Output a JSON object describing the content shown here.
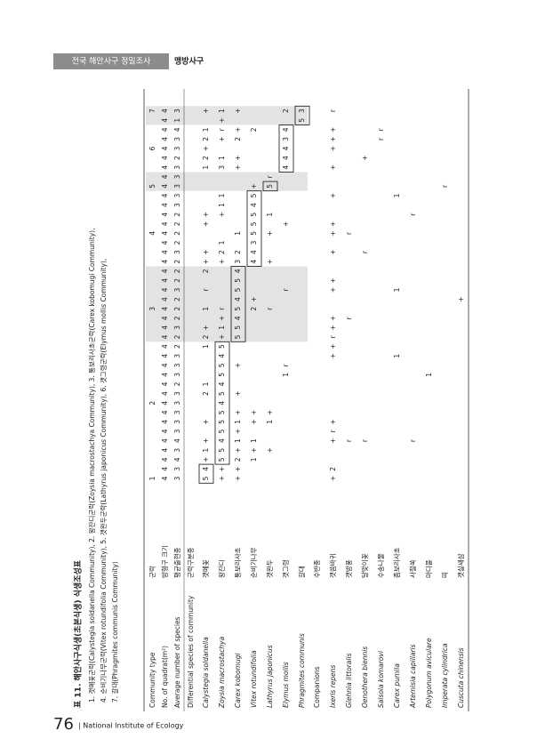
{
  "header": {
    "section": "전국 해안사구 정밀조사",
    "site": "맹방사구"
  },
  "footer": {
    "page": "76",
    "org": "| National Institute of Ecology"
  },
  "title": "표 11. 해안사구식생(초본식생) 식생조성표",
  "legend": [
    "1. 갯메꽃군락(Calystegia soldanella Community),   2. 왕잔디군락(Zoysia macrostachya Community),   3. 통보리사초군락(Carex kobomugi Community),",
    "4. 순비기나무군락(Vitex rotundifolia Community),   5. 갯완두군락(Lathyrus japonicus Community),   6. 갯그령군락(Elymus mollis Community),",
    "7. 갈대(Phragmites communis Community)"
  ],
  "table": {
    "head": [
      {
        "label": "Community type",
        "korean": "군락",
        "cells": [
          "1",
          null,
          null,
          null,
          null,
          null,
          null,
          null,
          "2",
          null,
          null,
          null,
          null,
          null,
          null,
          null,
          null,
          null,
          "3",
          null,
          null,
          null,
          null,
          null,
          null,
          null,
          "4",
          null,
          null,
          null,
          null,
          "5",
          null,
          null,
          null,
          "6",
          null,
          null,
          null,
          "7"
        ]
      },
      {
        "label": "No. of quadrat(m²)",
        "korean": "방형구 크기",
        "cells": [
          "4",
          "4",
          "4",
          "4",
          "4",
          "4",
          "4",
          "4",
          "4",
          "4",
          "4",
          "4",
          "4",
          "4",
          "4",
          "4",
          "4",
          "4",
          "4",
          "4",
          "4",
          "4",
          "4",
          "4",
          "4",
          "4",
          "4",
          "4",
          "4",
          "4",
          "4",
          "4",
          "4",
          "4",
          "4",
          "4",
          "4",
          "4",
          "4",
          "4"
        ]
      },
      {
        "label": "Average number of species",
        "korean": "평균출현종",
        "cells": [
          "3",
          "3",
          "4",
          "3",
          "4",
          "3",
          "3",
          "3",
          "3",
          "3",
          "2",
          "3",
          "3",
          "3",
          "2",
          "2",
          "3",
          "2",
          "2",
          "2",
          "3",
          "2",
          "2",
          "2",
          "3",
          "2",
          "2",
          "2",
          "2",
          "3",
          "3",
          "3",
          "3",
          "3",
          "2",
          "3",
          "3",
          "4",
          "1",
          "3"
        ]
      }
    ],
    "differential_header": {
      "label": "Differential species of community",
      "korean": "군락구분종"
    },
    "differential": [
      {
        "name": "Calystegia soldanella",
        "korean": "갯메꽃",
        "cells": [
          "5",
          "4",
          "+",
          "1",
          "+",
          null,
          "+",
          null,
          null,
          "2",
          "1",
          null,
          null,
          null,
          "1",
          "2",
          "+",
          null,
          "1",
          null,
          "r",
          null,
          "2",
          "+",
          "+",
          null,
          null,
          "+",
          "+",
          null,
          null,
          null,
          null,
          "1",
          "2",
          "+",
          "2",
          "1",
          null,
          "+"
        ]
      },
      {
        "name": "Zoysia macrostachya",
        "korean": "왕잔디",
        "cells": [
          "+",
          "+",
          "5",
          "5",
          "4",
          "5",
          "5",
          "5",
          "4",
          "5",
          "4",
          "5",
          "5",
          "4",
          "5",
          "+",
          "1",
          "+",
          "r",
          null,
          null,
          null,
          null,
          "+",
          "2",
          "1",
          null,
          null,
          "+",
          "1",
          "1",
          null,
          null,
          "3",
          "1",
          null,
          "+",
          "r",
          "+",
          "1"
        ]
      },
      {
        "name": "Carex kobomugi",
        "korean": "통보리사초",
        "cells": [
          "+",
          "+",
          "2",
          "+",
          "1",
          "+",
          "1",
          "+",
          null,
          "+",
          null,
          null,
          "+",
          null,
          null,
          "5",
          "5",
          "4",
          "5",
          "4",
          "5",
          "5",
          "4",
          "3",
          "2",
          null,
          "1",
          null,
          null,
          null,
          null,
          null,
          null,
          "+",
          "+",
          null,
          "2",
          "+",
          null,
          "+"
        ]
      },
      {
        "name": "Vitex rotundifolia",
        "korean": "순비기나무",
        "cells": [
          null,
          null,
          "1",
          "+",
          "1",
          null,
          "+",
          "+",
          null,
          null,
          null,
          null,
          null,
          null,
          null,
          null,
          null,
          null,
          "2",
          "+",
          null,
          null,
          null,
          "4",
          "4",
          "3",
          "5",
          "5",
          "5",
          "4",
          "5",
          "+",
          null,
          null,
          null,
          null,
          null,
          "2",
          null,
          null
        ]
      },
      {
        "name": "Lathyrus japonicus",
        "korean": "갯완두",
        "cells": [
          null,
          null,
          null,
          "+",
          null,
          null,
          "1",
          "+",
          null,
          null,
          null,
          null,
          null,
          null,
          null,
          null,
          null,
          null,
          "r",
          null,
          null,
          null,
          null,
          "+",
          null,
          null,
          "+",
          null,
          "1",
          null,
          null,
          "5",
          "r",
          null,
          null,
          null,
          null,
          null,
          null,
          null
        ]
      },
      {
        "name": "Elymus mollis",
        "korean": "갯그령",
        "cells": [
          null,
          null,
          null,
          null,
          null,
          null,
          null,
          null,
          null,
          null,
          null,
          "1",
          "r",
          null,
          null,
          null,
          null,
          null,
          null,
          null,
          "r",
          null,
          null,
          null,
          null,
          null,
          null,
          "+",
          null,
          null,
          null,
          null,
          null,
          "4",
          "4",
          "4",
          "3",
          "4",
          null,
          "2"
        ]
      },
      {
        "name": "Phragmites communis",
        "korean": "갈대",
        "cells": [
          null,
          null,
          null,
          null,
          null,
          null,
          null,
          null,
          null,
          null,
          null,
          null,
          null,
          null,
          null,
          null,
          null,
          null,
          null,
          null,
          null,
          null,
          null,
          null,
          null,
          null,
          null,
          null,
          null,
          null,
          null,
          null,
          null,
          null,
          null,
          null,
          null,
          null,
          "5",
          "3"
        ]
      }
    ],
    "companions_header": {
      "label": "Companions",
      "korean": "수반종"
    },
    "companions": [
      {
        "name": "Ixeris repens",
        "korean": "갯씀바귀",
        "cells": [
          "+",
          "2",
          null,
          null,
          "+",
          "r",
          "+",
          null,
          null,
          null,
          null,
          null,
          null,
          "+",
          "+",
          "r",
          "+",
          "+",
          null,
          null,
          "+",
          "+",
          null,
          null,
          "+",
          null,
          "+",
          "+",
          null,
          null,
          "+",
          null,
          null,
          "+",
          null,
          "+",
          "+",
          "+",
          null,
          "r"
        ]
      },
      {
        "name": "Glehnia littoralis",
        "korean": "갯방풍",
        "cells": [
          null,
          null,
          null,
          null,
          "r",
          null,
          null,
          null,
          null,
          null,
          null,
          null,
          null,
          null,
          null,
          null,
          null,
          "r",
          null,
          null,
          null,
          null,
          null,
          null,
          null,
          null,
          "r",
          null,
          null,
          null,
          null,
          null,
          null,
          null,
          null,
          null,
          null,
          null,
          null,
          null
        ]
      },
      {
        "name": "Oenothera biennis",
        "korean": "달맞이꽃",
        "cells": [
          null,
          null,
          null,
          null,
          "r",
          null,
          null,
          null,
          null,
          null,
          null,
          null,
          null,
          null,
          null,
          null,
          null,
          null,
          null,
          null,
          null,
          null,
          null,
          null,
          "r",
          null,
          null,
          null,
          null,
          null,
          null,
          null,
          null,
          null,
          "+",
          null,
          null,
          null,
          null,
          null
        ]
      },
      {
        "name": "Salsola komarovi",
        "korean": "수송나물",
        "cells": [
          null,
          null,
          null,
          null,
          null,
          null,
          null,
          null,
          null,
          null,
          null,
          null,
          null,
          null,
          null,
          null,
          null,
          null,
          null,
          null,
          null,
          null,
          null,
          null,
          null,
          null,
          null,
          null,
          null,
          null,
          null,
          null,
          null,
          null,
          null,
          null,
          "r",
          "r",
          null,
          null
        ]
      },
      {
        "name": "Carex pumila",
        "korean": "좀보리사초",
        "cells": [
          null,
          null,
          null,
          null,
          null,
          null,
          null,
          null,
          null,
          null,
          null,
          null,
          null,
          "1",
          null,
          null,
          null,
          null,
          null,
          null,
          "1",
          null,
          null,
          null,
          null,
          null,
          null,
          null,
          null,
          null,
          "1",
          null,
          null,
          null,
          null,
          null,
          null,
          null,
          null,
          null
        ]
      },
      {
        "name": "Artemisia capillaris",
        "korean": "사철쑥",
        "cells": [
          null,
          null,
          null,
          null,
          "r",
          null,
          null,
          null,
          null,
          null,
          null,
          null,
          null,
          null,
          null,
          null,
          null,
          null,
          null,
          null,
          null,
          null,
          null,
          null,
          null,
          null,
          null,
          null,
          "r",
          null,
          null,
          null,
          null,
          null,
          null,
          null,
          null,
          null,
          null,
          null
        ]
      },
      {
        "name": "Polygonum aviculare",
        "korean": "마디풀",
        "cells": [
          null,
          null,
          null,
          null,
          null,
          null,
          null,
          null,
          null,
          null,
          null,
          "1",
          null,
          null,
          null,
          null,
          null,
          null,
          null,
          null,
          null,
          null,
          null,
          null,
          null,
          null,
          null,
          null,
          null,
          null,
          null,
          null,
          null,
          null,
          null,
          null,
          null,
          null,
          null,
          null
        ]
      },
      {
        "name": "Imperata cylindrica",
        "korean": "띠",
        "cells": [
          null,
          null,
          null,
          null,
          null,
          null,
          null,
          null,
          null,
          null,
          null,
          null,
          null,
          null,
          null,
          null,
          null,
          null,
          null,
          null,
          null,
          null,
          null,
          null,
          null,
          null,
          null,
          null,
          null,
          null,
          null,
          "r",
          null,
          null,
          null,
          null,
          null,
          null,
          null,
          null
        ]
      },
      {
        "name": "Cuscuta chinensis",
        "korean": "갯실새삼",
        "cells": [
          null,
          null,
          null,
          null,
          null,
          null,
          null,
          null,
          null,
          null,
          null,
          null,
          null,
          null,
          null,
          null,
          null,
          null,
          null,
          "+",
          null,
          null,
          null,
          null,
          null,
          null,
          null,
          null,
          null,
          null,
          null,
          null,
          null,
          null,
          null,
          null,
          null,
          null,
          null,
          null
        ]
      }
    ]
  }
}
